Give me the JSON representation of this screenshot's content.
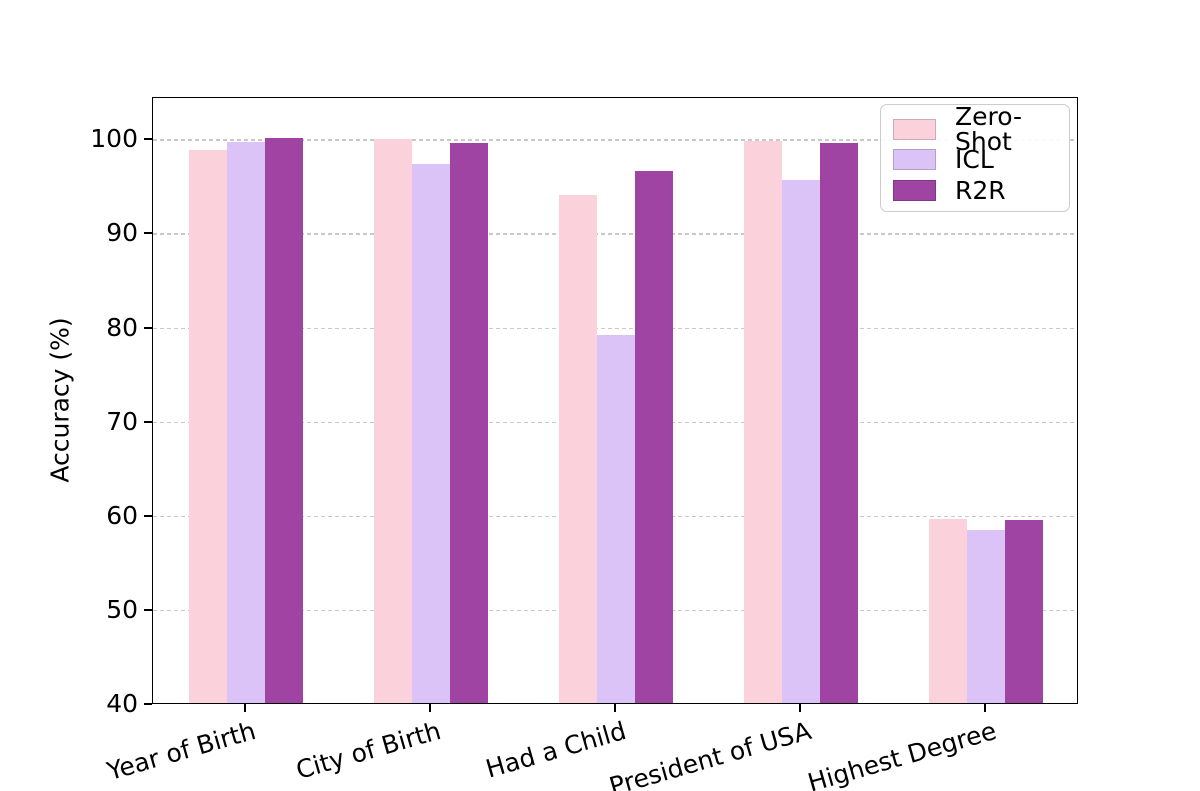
{
  "figure": {
    "background": "#ffffff",
    "frame_color": "#000000",
    "gridline_color": "#c9c9c9",
    "gridline_style": "dashed"
  },
  "chart_data": {
    "type": "bar",
    "title": "",
    "xlabel": "",
    "ylabel": "Accuracy (%)",
    "categories": [
      "Year of Birth",
      "City of Birth",
      "Had a Child",
      "President of USA",
      "Highest Degree"
    ],
    "series": [
      {
        "name": "Zero-Shot",
        "color": "#fbd1dc",
        "values": [
          98.8,
          99.9,
          94.0,
          99.7,
          59.6
        ]
      },
      {
        "name": "ICL",
        "color": "#dcc3f7",
        "values": [
          99.6,
          97.3,
          79.1,
          95.6,
          58.4
        ]
      },
      {
        "name": "R2R",
        "color": "#9f44a3",
        "values": [
          100.0,
          99.5,
          96.5,
          99.5,
          59.4
        ]
      }
    ],
    "ylim": [
      40,
      104.5
    ],
    "yticks": [
      40,
      50,
      60,
      70,
      80,
      90,
      100
    ],
    "grid": "horizontal dashed at y ticks",
    "legend_position": "upper right",
    "legend_entries": [
      "Zero-Shot",
      "ICL",
      "R2R"
    ],
    "bar_edge": "none",
    "x_tick_label_rotation_deg": -16
  }
}
